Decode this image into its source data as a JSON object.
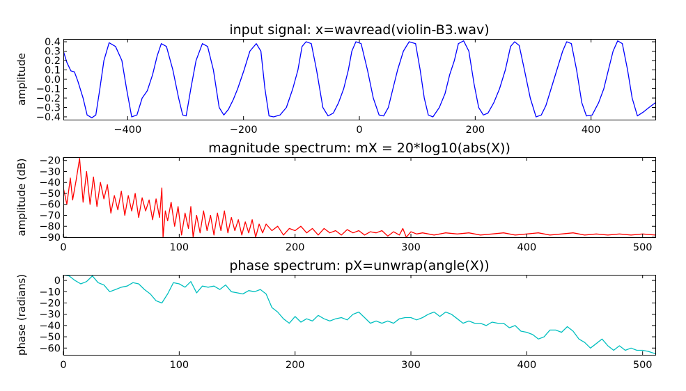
{
  "chart_data": [
    {
      "type": "line",
      "title": "input signal: x=wavread(violin-B3.wav)",
      "xlabel": "",
      "ylabel": "amplitude",
      "xlim": [
        -511,
        511
      ],
      "ylim": [
        -0.43,
        0.43
      ],
      "xticks": [
        -400,
        -200,
        0,
        200,
        400
      ],
      "yticks": [
        0.4,
        0.3,
        0.2,
        0.1,
        0.0,
        -0.1,
        -0.2,
        -0.3,
        -0.4
      ],
      "xtick_labels": [
        "−400",
        "−200",
        "0",
        "200",
        "400"
      ],
      "ytick_labels": [
        "0.4",
        "0.3",
        "0.2",
        "0.1",
        "0.0",
        "−0.1",
        "−0.2",
        "−0.3",
        "−0.4"
      ],
      "color": "#0000ff",
      "grid": false,
      "series": [
        {
          "x": [
            -511,
            -505,
            -498,
            -492,
            -486,
            -477,
            -470,
            -462,
            -455,
            -448,
            -441,
            -432,
            -421,
            -410,
            -402,
            -393,
            -384,
            -375,
            -366,
            -357,
            -349,
            -342,
            -333,
            -322,
            -312,
            -305,
            -299,
            -291,
            -282,
            -271,
            -262,
            -252,
            -242,
            -234,
            -226,
            -218,
            -210,
            -199,
            -189,
            -178,
            -170,
            -163,
            -156,
            -148,
            -137,
            -126,
            -115,
            -106,
            -99,
            -92,
            -83,
            -74,
            -63,
            -54,
            -45,
            -36,
            -27,
            -19,
            -13,
            -6,
            3,
            14,
            24,
            34,
            42,
            50,
            58,
            66,
            76,
            86,
            97,
            105,
            112,
            119,
            127,
            138,
            148,
            156,
            164,
            171,
            180,
            189,
            198,
            206,
            214,
            222,
            232,
            242,
            252,
            261,
            268,
            276,
            285,
            295,
            305,
            314,
            322,
            331,
            341,
            351,
            358,
            366,
            375,
            384,
            392,
            402,
            413,
            422,
            430,
            438,
            446,
            454,
            463,
            471,
            480,
            490,
            500,
            511
          ],
          "y": [
            0.3,
            0.18,
            0.09,
            0.08,
            -0.02,
            -0.2,
            -0.38,
            -0.41,
            -0.38,
            -0.1,
            0.2,
            0.39,
            0.35,
            0.2,
            -0.1,
            -0.4,
            -0.38,
            -0.2,
            -0.12,
            0.05,
            0.25,
            0.38,
            0.35,
            0.1,
            -0.2,
            -0.38,
            -0.39,
            -0.1,
            0.2,
            0.38,
            0.35,
            0.1,
            -0.3,
            -0.38,
            -0.32,
            -0.22,
            -0.1,
            0.1,
            0.3,
            0.38,
            0.3,
            -0.1,
            -0.39,
            -0.4,
            -0.38,
            -0.3,
            -0.1,
            0.1,
            0.35,
            0.4,
            0.38,
            0.1,
            -0.3,
            -0.39,
            -0.36,
            -0.25,
            -0.1,
            0.1,
            0.3,
            0.4,
            0.38,
            0.1,
            -0.2,
            -0.38,
            -0.39,
            -0.3,
            -0.1,
            0.1,
            0.3,
            0.4,
            0.38,
            0.1,
            -0.2,
            -0.38,
            -0.4,
            -0.3,
            -0.15,
            0.05,
            0.2,
            0.38,
            0.41,
            0.3,
            -0.05,
            -0.3,
            -0.38,
            -0.36,
            -0.25,
            -0.1,
            0.1,
            0.35,
            0.4,
            0.36,
            0.1,
            -0.2,
            -0.4,
            -0.38,
            -0.28,
            -0.1,
            0.1,
            0.3,
            0.4,
            0.38,
            0.1,
            -0.25,
            -0.39,
            -0.38,
            -0.25,
            -0.1,
            0.1,
            0.3,
            0.41,
            0.38,
            0.1,
            -0.2,
            -0.39,
            -0.35,
            -0.3,
            -0.25
          ]
        }
      ]
    },
    {
      "type": "line",
      "title": "magnitude spectrum: mX = 20*log10(abs(X))",
      "xlabel": "",
      "ylabel": "amplitude (dB)",
      "xlim": [
        0,
        511
      ],
      "ylim": [
        -90,
        -17
      ],
      "xticks": [
        0,
        100,
        200,
        300,
        400,
        500
      ],
      "yticks": [
        -20,
        -30,
        -40,
        -50,
        -60,
        -70,
        -80,
        -90
      ],
      "xtick_labels": [
        "0",
        "100",
        "200",
        "300",
        "400",
        "500"
      ],
      "ytick_labels": [
        "−20",
        "−30",
        "−40",
        "−50",
        "−60",
        "−70",
        "−80",
        "−90"
      ],
      "color": "#ff0000",
      "grid": false,
      "series": [
        {
          "x": [
            0,
            3,
            6,
            8,
            11,
            14,
            17,
            20,
            23,
            26,
            29,
            32,
            35,
            38,
            41,
            44,
            47,
            50,
            53,
            56,
            59,
            62,
            65,
            68,
            71,
            74,
            77,
            80,
            83,
            85,
            86,
            88,
            90,
            93,
            96,
            99,
            102,
            105,
            108,
            110,
            112,
            115,
            118,
            121,
            124,
            127,
            130,
            133,
            136,
            139,
            142,
            145,
            148,
            151,
            154,
            157,
            160,
            163,
            166,
            169,
            172,
            175,
            180,
            185,
            190,
            195,
            200,
            205,
            210,
            215,
            220,
            225,
            230,
            235,
            240,
            245,
            250,
            255,
            260,
            265,
            270,
            275,
            280,
            285,
            290,
            293,
            296,
            300,
            305,
            310,
            320,
            330,
            340,
            350,
            360,
            370,
            380,
            390,
            400,
            410,
            420,
            430,
            440,
            450,
            460,
            470,
            480,
            490,
            500,
            511
          ],
          "y": [
            -45,
            -60,
            -36,
            -56,
            -38,
            -18,
            -58,
            -30,
            -60,
            -35,
            -62,
            -40,
            -55,
            -42,
            -68,
            -52,
            -65,
            -48,
            -70,
            -52,
            -66,
            -50,
            -72,
            -54,
            -66,
            -56,
            -74,
            -55,
            -72,
            -45,
            -90,
            -66,
            -75,
            -58,
            -80,
            -62,
            -88,
            -68,
            -82,
            -62,
            -90,
            -70,
            -86,
            -66,
            -84,
            -70,
            -88,
            -68,
            -84,
            -66,
            -86,
            -72,
            -84,
            -74,
            -88,
            -76,
            -86,
            -74,
            -90,
            -78,
            -86,
            -78,
            -84,
            -80,
            -88,
            -82,
            -84,
            -80,
            -86,
            -82,
            -88,
            -82,
            -86,
            -84,
            -88,
            -83,
            -86,
            -84,
            -88,
            -85,
            -86,
            -84,
            -89,
            -85,
            -88,
            -82,
            -90,
            -85,
            -87,
            -86,
            -88,
            -86,
            -87,
            -86,
            -88,
            -87,
            -86,
            -88,
            -87,
            -86,
            -88,
            -87,
            -86,
            -88,
            -87,
            -88,
            -87,
            -88,
            -87,
            -88
          ]
        }
      ]
    },
    {
      "type": "line",
      "title": "phase spectrum: pX=unwrap(angle(X))",
      "xlabel": "",
      "ylabel": "phase (radians)",
      "xlim": [
        0,
        511
      ],
      "ylim": [
        -66,
        5
      ],
      "xticks": [
        0,
        100,
        200,
        300,
        400,
        500
      ],
      "yticks": [
        0,
        -10,
        -20,
        -30,
        -40,
        -50,
        -60
      ],
      "xtick_labels": [
        "0",
        "100",
        "200",
        "300",
        "400",
        "500"
      ],
      "ytick_labels": [
        "0",
        "−10",
        "−20",
        "−30",
        "−40",
        "−50",
        "−60"
      ],
      "color": "#00bfbf",
      "grid": false,
      "series": [
        {
          "x": [
            0,
            5,
            10,
            15,
            20,
            25,
            30,
            35,
            40,
            45,
            50,
            55,
            60,
            65,
            70,
            75,
            80,
            85,
            90,
            95,
            100,
            105,
            110,
            115,
            120,
            125,
            130,
            135,
            140,
            145,
            150,
            155,
            160,
            165,
            170,
            175,
            180,
            185,
            190,
            195,
            200,
            205,
            210,
            215,
            220,
            225,
            230,
            235,
            240,
            245,
            250,
            255,
            260,
            265,
            270,
            275,
            280,
            285,
            290,
            295,
            300,
            305,
            310,
            315,
            320,
            325,
            330,
            335,
            340,
            345,
            350,
            355,
            360,
            365,
            370,
            375,
            380,
            385,
            390,
            395,
            400,
            405,
            410,
            415,
            420,
            425,
            430,
            435,
            440,
            445,
            450,
            455,
            460,
            465,
            470,
            475,
            480,
            485,
            490,
            495,
            500,
            505,
            511
          ],
          "y": [
            5,
            4,
            0,
            -3,
            -1,
            4,
            -2,
            -4,
            -10,
            -8,
            -6,
            -5,
            -2,
            -3,
            -8,
            -12,
            -18,
            -20,
            -12,
            -2,
            -3,
            -6,
            -1,
            -11,
            -5,
            -6,
            -5,
            -8,
            -4,
            -10,
            -11,
            -12,
            -9,
            -10,
            -8,
            -12,
            -24,
            -28,
            -34,
            -38,
            -32,
            -37,
            -34,
            -36,
            -31,
            -34,
            -36,
            -34,
            -33,
            -35,
            -30,
            -28,
            -33,
            -38,
            -36,
            -38,
            -36,
            -38,
            -34,
            -33,
            -33,
            -35,
            -33,
            -30,
            -28,
            -32,
            -28,
            -30,
            -34,
            -38,
            -36,
            -38,
            -38,
            -40,
            -37,
            -38,
            -38,
            -42,
            -40,
            -45,
            -46,
            -48,
            -52,
            -50,
            -44,
            -44,
            -46,
            -41,
            -45,
            -52,
            -55,
            -60,
            -56,
            -52,
            -58,
            -62,
            -58,
            -62,
            -60,
            -62,
            -62,
            -63,
            -65
          ]
        }
      ]
    }
  ]
}
